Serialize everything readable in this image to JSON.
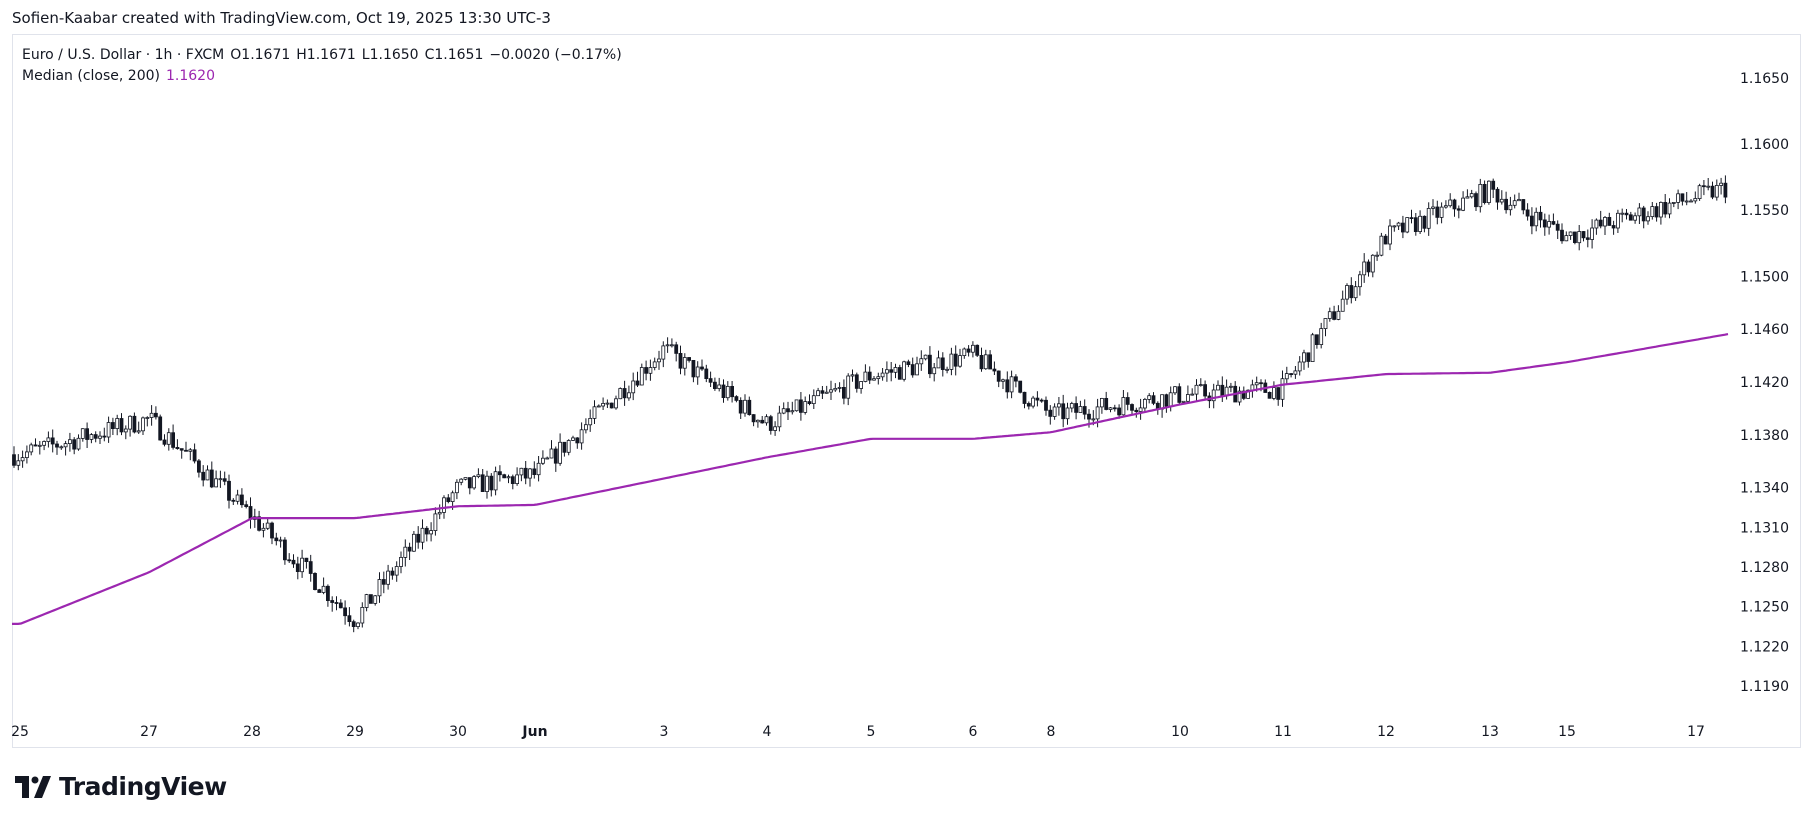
{
  "header": {
    "credit": "Sofien-Kaabar created with TradingView.com, Oct 19, 2025 13:30 UTC-3"
  },
  "legend": {
    "symbol": "Euro / U.S. Dollar · 1h · FXCM",
    "open": "O1.1671",
    "high": "H1.1671",
    "low": "L1.1650",
    "close": "C1.1651",
    "change": "−0.0020 (−0.17%)",
    "indicator_name": "Median (close, 200)",
    "indicator_value": "1.1620"
  },
  "brand": {
    "name": "TradingView"
  },
  "colors": {
    "candle": "#131722",
    "median_line": "#9c27b0",
    "frame": "#e0e3eb"
  },
  "chart_data": {
    "type": "line",
    "subtype": "candlestick",
    "series": [
      {
        "name": "Median (close, 200)",
        "x": [
          "25",
          "27",
          "28",
          "29",
          "30",
          "Jun",
          "3",
          "4",
          "5",
          "6",
          "8",
          "10",
          "11",
          "12",
          "13",
          "15",
          "17"
        ],
        "values": [
          1.1237,
          1.1276,
          1.1317,
          1.1317,
          1.1326,
          1.1327,
          1.1347,
          1.1363,
          1.1377,
          1.1377,
          1.1382,
          1.1403,
          1.1418,
          1.1426,
          1.1427,
          1.1435,
          1.1452
        ]
      },
      {
        "name": "Close",
        "x": [
          "25",
          "27",
          "28",
          "29",
          "30",
          "Jun",
          "3",
          "4",
          "5",
          "6",
          "8",
          "10",
          "11",
          "12",
          "13",
          "15",
          "17"
        ],
        "values": [
          1.1365,
          1.1392,
          1.1318,
          1.124,
          1.134,
          1.135,
          1.1445,
          1.1388,
          1.1425,
          1.144,
          1.1395,
          1.141,
          1.1415,
          1.153,
          1.1565,
          1.153,
          1.156
        ]
      }
    ],
    "y_ticks": [
      "1.1650",
      "1.1600",
      "1.1550",
      "1.1500",
      "1.1460",
      "1.1420",
      "1.1380",
      "1.1340",
      "1.1310",
      "1.1280",
      "1.1250",
      "1.1220",
      "1.1190"
    ],
    "x_ticks": [
      "25",
      "27",
      "28",
      "29",
      "30",
      "Jun",
      "3",
      "4",
      "5",
      "6",
      "8",
      "10",
      "11",
      "12",
      "13",
      "15",
      "17"
    ],
    "ylim": [
      1.1185,
      1.166
    ],
    "grid": false,
    "legend_position": "top-left"
  }
}
